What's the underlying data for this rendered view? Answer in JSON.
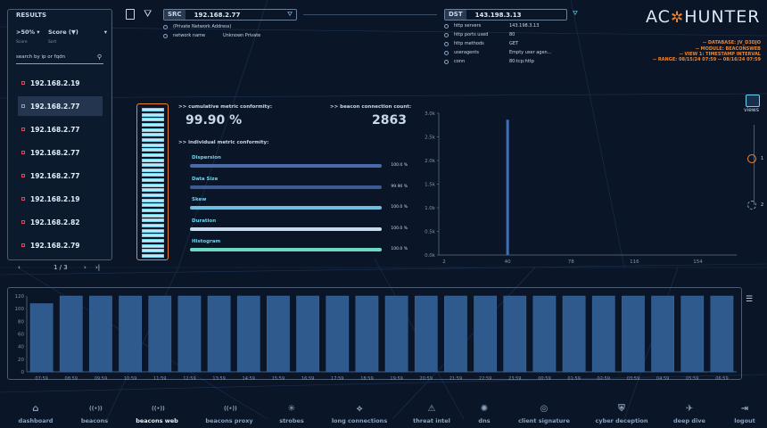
{
  "results": {
    "title": "RESULTS",
    "threshold": ">50%",
    "threshold_caption": "Score",
    "sort": "Score (▼)",
    "sort_caption": "Sort",
    "search_placeholder": "search by ip or fqdn",
    "items": [
      "192.168.2.19",
      "192.168.2.77",
      "192.168.2.77",
      "192.168.2.77",
      "192.168.2.77",
      "192.168.2.19",
      "192.168.2.82",
      "192.168.2.79"
    ],
    "page": "1 / 3"
  },
  "src": {
    "label": "SRC",
    "ip": "192.168.2.77",
    "note": "(Private Network Address)",
    "network_key": "network name",
    "network_val": "Unknown Private"
  },
  "dst": {
    "label": "DST",
    "ip": "143.198.3.13",
    "rows": [
      {
        "k": "http servers",
        "v": "143.198.3.13"
      },
      {
        "k": "http ports used",
        "v": "80"
      },
      {
        "k": "http methods",
        "v": "GET"
      },
      {
        "k": "useragents",
        "v": "Empty user agen..."
      },
      {
        "k": "conn",
        "v": "80:tcp:http"
      }
    ]
  },
  "brand": {
    "left": "AC",
    "right": "HUNTER"
  },
  "meta": {
    "line1": "-- DATABASE: JV_D3DJO",
    "line2": "-- MODULE: BEACONSWEB",
    "line3": "-- VIEW 1: TIMESTAMP INTERVAL",
    "line4": "-- RANGE: 08/15/24 07:59 -- 08/16/24 07:59"
  },
  "conformity": {
    "cumulative_label": ">> cumulative metric conformity:",
    "cumulative_value": "99.90 %",
    "count_label": ">> beacon connection count:",
    "count_value": "2863",
    "individual_label": ">> individual metric conformity:",
    "fill": 0.999,
    "metrics": [
      {
        "name": "Dispersion",
        "pct": "100.0 %",
        "value": 1.0,
        "color": "#4a6aa8"
      },
      {
        "name": "Data Size",
        "pct": "99.90 %",
        "value": 0.999,
        "color": "#3e5a92"
      },
      {
        "name": "Skew",
        "pct": "100.0 %",
        "value": 1.0,
        "color": "#6dbfe0"
      },
      {
        "name": "Duration",
        "pct": "100.0 %",
        "value": 1.0,
        "color": "#c8dcf0"
      },
      {
        "name": "Histogram",
        "pct": "100.0 %",
        "value": 1.0,
        "color": "#6dd8c4"
      }
    ]
  },
  "views": {
    "label": "views",
    "option1": "1",
    "option2": "2"
  },
  "chart_data": [
    {
      "type": "bar",
      "yticks": [
        "3.0k",
        "2.5k",
        "2.0k",
        "1.5k",
        "1.0k",
        "0.5k",
        "0.0k"
      ],
      "xticks": [
        "2",
        "40",
        "78",
        "116",
        "154"
      ],
      "ylim": [
        0,
        3000
      ],
      "points": [
        {
          "x": 40,
          "y": 2863
        }
      ]
    },
    {
      "type": "bar",
      "yticks": [
        "120",
        "100",
        "80",
        "60",
        "40",
        "20",
        "0"
      ],
      "ylim": [
        0,
        120
      ],
      "categories": [
        "07:59",
        "08:59",
        "09:59",
        "10:59",
        "11:59",
        "12:59",
        "13:59",
        "14:59",
        "15:59",
        "16:59",
        "17:59",
        "18:59",
        "19:59",
        "20:59",
        "21:59",
        "22:59",
        "23:59",
        "00:59",
        "01:59",
        "02:59",
        "03:59",
        "04:59",
        "05:59",
        "06:59"
      ],
      "values": [
        108,
        120,
        120,
        120,
        120,
        120,
        120,
        120,
        120,
        120,
        120,
        120,
        120,
        120,
        120,
        120,
        120,
        120,
        120,
        120,
        120,
        120,
        120,
        120
      ]
    }
  ],
  "nav": [
    {
      "label": "dashboard",
      "icon": "home-icon",
      "glyph": "⌂"
    },
    {
      "label": "beacons",
      "icon": "beacon-icon",
      "glyph": "((•))"
    },
    {
      "label": "beacons web",
      "icon": "beacon-web-icon",
      "glyph": "((•))"
    },
    {
      "label": "beacons proxy",
      "icon": "beacon-proxy-icon",
      "glyph": "((•))"
    },
    {
      "label": "strobes",
      "icon": "strobe-icon",
      "glyph": "✳"
    },
    {
      "label": "long connections",
      "icon": "connections-icon",
      "glyph": "⟡"
    },
    {
      "label": "threat intel",
      "icon": "warning-icon",
      "glyph": "⚠"
    },
    {
      "label": "dns",
      "icon": "bug-icon",
      "glyph": "✺"
    },
    {
      "label": "client signature",
      "icon": "fingerprint-icon",
      "glyph": "◎"
    },
    {
      "label": "cyber deception",
      "icon": "shield-icon",
      "glyph": "⛨"
    },
    {
      "label": "deep dive",
      "icon": "plane-icon",
      "glyph": "✈"
    },
    {
      "label": "logout",
      "icon": "logout-icon",
      "glyph": "⇥"
    }
  ],
  "nav_selected": "beacons web"
}
